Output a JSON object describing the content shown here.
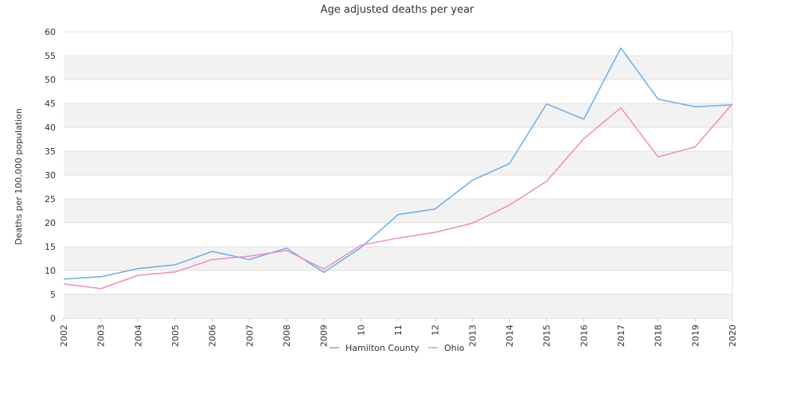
{
  "chart_data": {
    "type": "line",
    "title": "Age adjusted deaths per year",
    "xlabel": "",
    "ylabel": "Deaths per 100,000 population",
    "x": [
      "2002",
      "2003",
      "2004",
      "2005",
      "2006",
      "2007",
      "2008",
      "2009",
      "2010",
      "2011",
      "2012",
      "2013",
      "2014",
      "2015",
      "2016",
      "2017",
      "2018",
      "2019",
      "2020"
    ],
    "x_tick_labels": [
      "2002",
      "2003",
      "2004",
      "2005",
      "2006",
      "2007",
      "2008",
      "2009",
      "10",
      "11",
      "12",
      "2013",
      "2014",
      "2015",
      "2016",
      "2017",
      "2018",
      "2019",
      "2020"
    ],
    "ylim": [
      0,
      60
    ],
    "yticks": [
      0,
      5,
      10,
      15,
      20,
      25,
      30,
      35,
      40,
      45,
      50,
      55,
      60
    ],
    "grid": "horizontal alternating bands",
    "legend_position": "bottom-center",
    "series": [
      {
        "name": "Hamilton County",
        "color": "#6aaee8",
        "values": [
          8.2,
          8.7,
          10.4,
          11.2,
          14.0,
          12.3,
          14.7,
          9.6,
          14.8,
          21.7,
          22.9,
          28.9,
          32.4,
          44.9,
          41.7,
          56.6,
          45.9,
          44.3,
          44.7
        ]
      },
      {
        "name": "Ohio",
        "color": "#f08cbf",
        "values": [
          7.2,
          6.2,
          9.0,
          9.7,
          12.3,
          13.0,
          14.2,
          10.3,
          15.3,
          16.8,
          18.0,
          19.9,
          23.7,
          28.7,
          37.6,
          44.1,
          33.8,
          35.9,
          44.9
        ]
      }
    ],
    "band_color": "#f2f2f2",
    "grid_line_color": "#e0e0e0"
  }
}
